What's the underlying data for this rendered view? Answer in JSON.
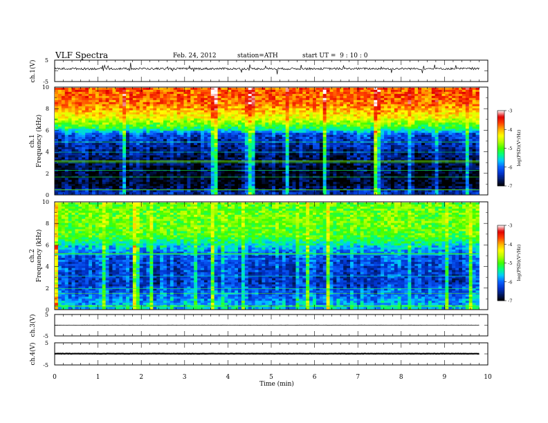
{
  "header": {
    "title": "VLF Spectra",
    "date": "Feb. 24, 2012",
    "station": "station=ATH",
    "start": "start UT =  9 : 10 : 0"
  },
  "colors": {
    "colormap": [
      "#000000",
      "#001a66",
      "#0033cc",
      "#0a60ff",
      "#00c8ff",
      "#00ff80",
      "#40ff00",
      "#b4ff00",
      "#ffff00",
      "#ffb000",
      "#ff4000",
      "#e00000",
      "#ffffff"
    ],
    "trace": "#000000",
    "frame": "#000000"
  },
  "chart_data": [
    {
      "type": "line",
      "panel": "ch1-waveform",
      "ylabel": "ch.1(V)",
      "yticks": [
        "5",
        "-5"
      ],
      "ylim": [
        -5,
        5
      ],
      "x": [
        0,
        9.8
      ],
      "baseline": 1.2,
      "noise_amplitude": 1.0,
      "xlim": [
        0,
        10
      ]
    },
    {
      "type": "heatmap",
      "panel": "ch1-spectrogram",
      "ylabel": "Frequency (kHz)",
      "chlabel": "ch.1",
      "yticks": [
        "0",
        "2",
        "4",
        "6",
        "8",
        "10"
      ],
      "ylim": [
        0,
        10
      ],
      "xlim": [
        0,
        10
      ],
      "data_end_min": 9.8,
      "colorbar_label": "log(PSD)(V²/Hz)",
      "colorbar_ticks": [
        "-3",
        "-4",
        "-5",
        "-6",
        "-7"
      ],
      "zlim": [
        -7,
        -3
      ],
      "levels_by_freq_khz": [
        {
          "f": 0,
          "v": -6.3
        },
        {
          "f": 0.8,
          "v": -6.9
        },
        {
          "f": 2,
          "v": -6.9
        },
        {
          "f": 4,
          "v": -6.6
        },
        {
          "f": 5.6,
          "v": -6.2
        },
        {
          "f": 6.2,
          "v": -5.2
        },
        {
          "f": 7.2,
          "v": -4.4
        },
        {
          "f": 8.5,
          "v": -3.8
        },
        {
          "f": 10,
          "v": -3.7
        }
      ]
    },
    {
      "type": "heatmap",
      "panel": "ch2-spectrogram",
      "ylabel": "Frequency (kHz)",
      "chlabel": "ch.2",
      "yticks": [
        "0",
        "2",
        "4",
        "6",
        "8",
        "10"
      ],
      "ylim": [
        0,
        10
      ],
      "xlim": [
        0,
        10
      ],
      "data_end_min": 9.8,
      "colorbar_label": "log(PSD)(V²/Hz)",
      "colorbar_ticks": [
        "-3",
        "-4",
        "-5",
        "-6",
        "-7"
      ],
      "zlim": [
        -7,
        -3
      ],
      "levels_by_freq_khz": [
        {
          "f": 0,
          "v": -5.6
        },
        {
          "f": 1,
          "v": -5.9
        },
        {
          "f": 2.5,
          "v": -6.3
        },
        {
          "f": 5,
          "v": -6.1
        },
        {
          "f": 6,
          "v": -5.5
        },
        {
          "f": 6.8,
          "v": -5.0
        },
        {
          "f": 8,
          "v": -4.9
        },
        {
          "f": 10,
          "v": -4.9
        }
      ]
    },
    {
      "type": "line",
      "panel": "ch3-waveform",
      "ylabel": "ch.3(V)",
      "yticks": [
        "5",
        "-5"
      ],
      "ylim": [
        -5,
        5
      ],
      "x": [
        0,
        9.8
      ],
      "baseline": 0.2,
      "noise_amplitude": 0.1,
      "xlim": [
        0,
        10
      ]
    },
    {
      "type": "line",
      "panel": "ch4-waveform",
      "ylabel": "ch.4(V)",
      "yticks": [
        "5",
        "-5"
      ],
      "ylim": [
        -5,
        5
      ],
      "x": [
        0,
        9.8
      ],
      "baseline": 0.1,
      "noise_amplitude": 0.15,
      "xlim": [
        0,
        10
      ],
      "xlabel": "Time (min)",
      "xticks": [
        "0",
        "1",
        "2",
        "3",
        "4",
        "5",
        "6",
        "7",
        "8",
        "9",
        "10"
      ]
    }
  ]
}
